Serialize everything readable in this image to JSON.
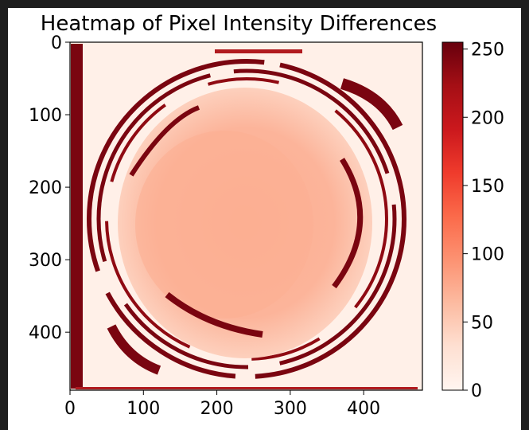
{
  "chart_data": {
    "type": "heatmap",
    "title": "Heatmap of Pixel Intensity Differences",
    "xlabel": "",
    "ylabel": "",
    "colormap": "Reds",
    "xlim": [
      0,
      480
    ],
    "ylim": [
      480,
      0
    ],
    "x_ticks": [
      0,
      100,
      200,
      300,
      400
    ],
    "y_ticks": [
      0,
      100,
      200,
      300,
      400
    ],
    "colorbar": {
      "range": [
        0,
        255
      ],
      "ticks": [
        0,
        50,
        100,
        150,
        200,
        250
      ]
    },
    "image_description_regions": [
      {
        "region": "background",
        "value": 10
      },
      {
        "region": "center-disc",
        "value": 95
      },
      {
        "region": "rings",
        "value": 255
      },
      {
        "region": "left-edge-strip",
        "value": 255
      }
    ]
  }
}
